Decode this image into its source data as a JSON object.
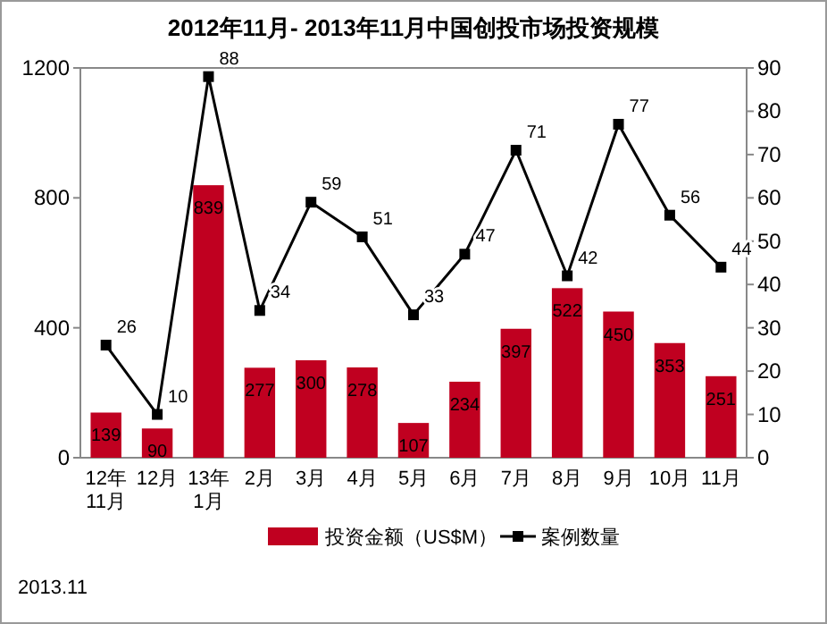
{
  "chart_data": {
    "type": "bar",
    "title": "2012年11月- 2013年11月中国创投市场投资规模",
    "categories": [
      "12年\n11月",
      "12月",
      "13年\n1月",
      "2月",
      "3月",
      "4月",
      "5月",
      "6月",
      "7月",
      "8月",
      "9月",
      "10月",
      "11月"
    ],
    "series": [
      {
        "name": "投资金额（US$M）",
        "color": "#c00020",
        "values": [
          139,
          90,
          839,
          277,
          300,
          278,
          107,
          234,
          397,
          522,
          450,
          353,
          251
        ]
      },
      {
        "name": "案例数量",
        "type": "line",
        "axis": "y2",
        "color": "#000000",
        "marker": "square",
        "values": [
          26,
          10,
          88,
          34,
          59,
          51,
          33,
          47,
          71,
          42,
          77,
          56,
          44
        ]
      }
    ],
    "ylim": [
      0,
      1200
    ],
    "yticks": [
      0,
      400,
      800,
      1200
    ],
    "y2lim": [
      0,
      90
    ],
    "y2ticks": [
      0,
      10,
      20,
      30,
      40,
      50,
      60,
      70,
      80,
      90
    ],
    "data_labels": true,
    "legend": "bottom",
    "grid": false,
    "annotations": [
      "2013.11"
    ]
  }
}
